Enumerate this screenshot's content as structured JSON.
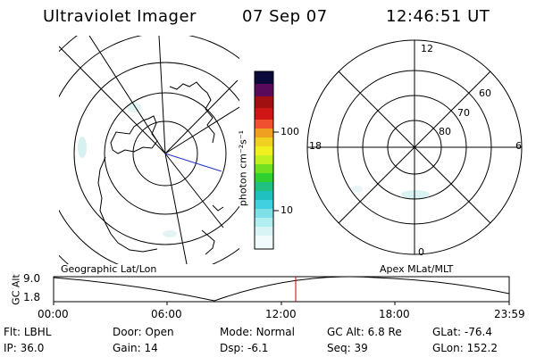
{
  "header": {
    "instrument": "Ultraviolet Imager",
    "date": "07 Sep 07",
    "time": "12:46:51 UT"
  },
  "colorbar": {
    "label": "photon cm⁻²s⁻¹",
    "ticks": [
      "100",
      "10"
    ]
  },
  "left_map": {
    "caption": "Geographic Lat/Lon"
  },
  "right_map": {
    "caption": "Apex MLat/MLT",
    "mlt_labels": {
      "top": "12",
      "left": "18",
      "right": "6",
      "bottom": "0"
    },
    "lat_labels": [
      "60",
      "70",
      "80"
    ]
  },
  "altitude_plot": {
    "ylabel": "GC Alt",
    "yticks": [
      "9.0",
      "1.8"
    ],
    "xticks": [
      "00:00",
      "06:00",
      "12:00",
      "18:00",
      "23:59"
    ],
    "marker_color": "#cc0000"
  },
  "status": {
    "row1": [
      {
        "label": "Flt:",
        "value": "LBHL"
      },
      {
        "label": "Door:",
        "value": "Open"
      },
      {
        "label": "Mode:",
        "value": "Normal"
      },
      {
        "label": "GC Alt:",
        "value": "6.8 Re"
      },
      {
        "label": "GLat:",
        "value": "-76.4"
      }
    ],
    "row2": [
      {
        "label": "IP:",
        "value": "36.0"
      },
      {
        "label": "Gain:",
        "value": "14"
      },
      {
        "label": "Dsp:",
        "value": "-6.1"
      },
      {
        "label": "Seq:",
        "value": "39"
      },
      {
        "label": "GLon:",
        "value": "152.2"
      }
    ]
  }
}
